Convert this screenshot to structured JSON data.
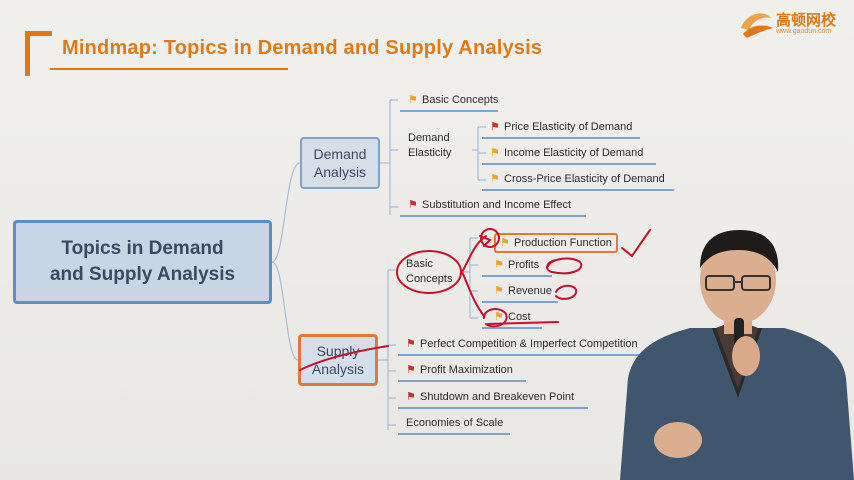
{
  "header": {
    "title": "Mindmap: Topics in Demand and Supply Analysis"
  },
  "logo": {
    "text": "高顿网校",
    "url": "www.gaodun.com"
  },
  "mindmap": {
    "root": [
      "Topics in Demand",
      "and Supply Analysis"
    ],
    "demand": {
      "label": [
        "Demand",
        "Analysis"
      ],
      "basic": "Basic Concepts",
      "elasticity": [
        "Demand",
        "Elasticity"
      ],
      "elasticity_items": [
        "Price Elasticity of Demand",
        "Income Elasticity of Demand",
        "Cross-Price Elasticity of Demand"
      ],
      "substitution": "Substitution and Income Effect"
    },
    "supply": {
      "label": [
        "Supply",
        "Analysis"
      ],
      "basic": [
        "Basic",
        "Concepts"
      ],
      "basic_items": [
        "Production Function",
        "Profits",
        "Revenue",
        "Cost"
      ],
      "others": [
        "Perfect Competition & Imperfect Competition",
        "Profit Maximization",
        "Shutdown and Breakeven Point",
        "Economies of Scale"
      ]
    }
  },
  "colors": {
    "accent": "#e07a18",
    "node_border": "#5b8fc9",
    "annotation": "#c8102e"
  }
}
